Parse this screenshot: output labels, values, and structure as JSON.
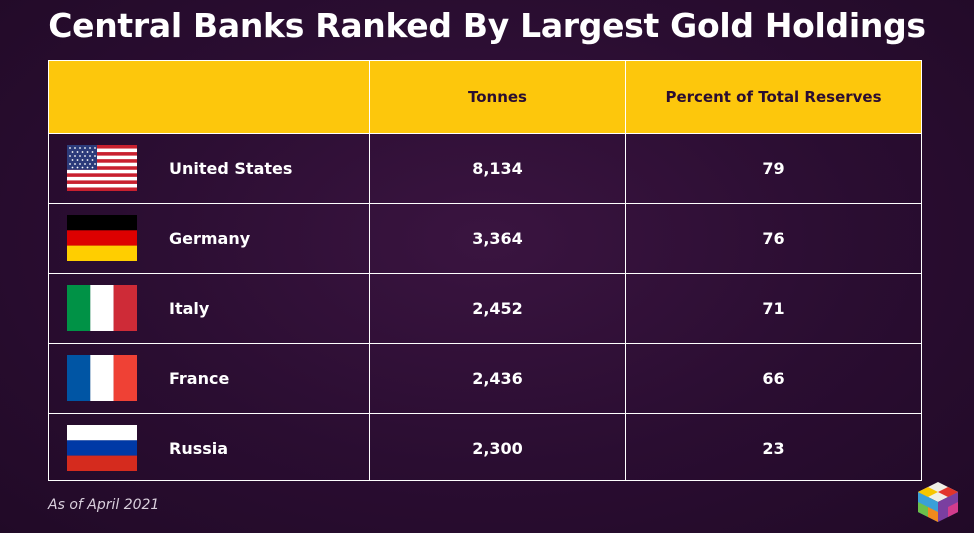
{
  "title": "Central Banks Ranked By Largest Gold Holdings",
  "footnote": "As of April 2021",
  "colors": {
    "header_bg": "#fdc70c",
    "background": "#2a0d31",
    "grid": "#ffffff"
  },
  "chart_data": {
    "type": "table",
    "columns": [
      "",
      "Tonnes",
      "Percent of Total Reserves"
    ],
    "rows": [
      {
        "country": "United States",
        "flag": "us-flag-icon",
        "tonnes": "8,134",
        "percent": "79"
      },
      {
        "country": "Germany",
        "flag": "germany-flag-icon",
        "tonnes": "3,364",
        "percent": "76"
      },
      {
        "country": "Italy",
        "flag": "italy-flag-icon",
        "tonnes": "2,452",
        "percent": "71"
      },
      {
        "country": "France",
        "flag": "france-flag-icon",
        "tonnes": "2,436",
        "percent": "66"
      },
      {
        "country": "Russia",
        "flag": "russia-flag-icon",
        "tonnes": "2,300",
        "percent": "23"
      }
    ]
  }
}
